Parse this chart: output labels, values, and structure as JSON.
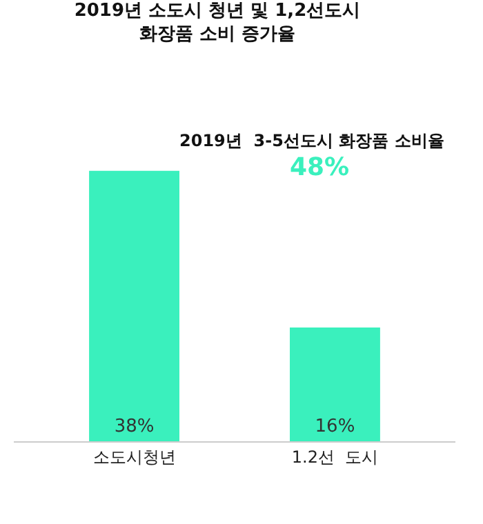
{
  "chart_data": {
    "type": "bar",
    "title": "2019년 소도시 청년 및 1,2선도시\n화장품 소비 증가율",
    "categories": [
      "소도시청년",
      "1.2선  도시"
    ],
    "values": [
      38,
      16
    ],
    "value_labels": [
      "38%",
      "16%"
    ],
    "color": "#3af0bd",
    "annotations": [
      "2019년  3-5선도시 화장품 소비율",
      "48%"
    ]
  }
}
